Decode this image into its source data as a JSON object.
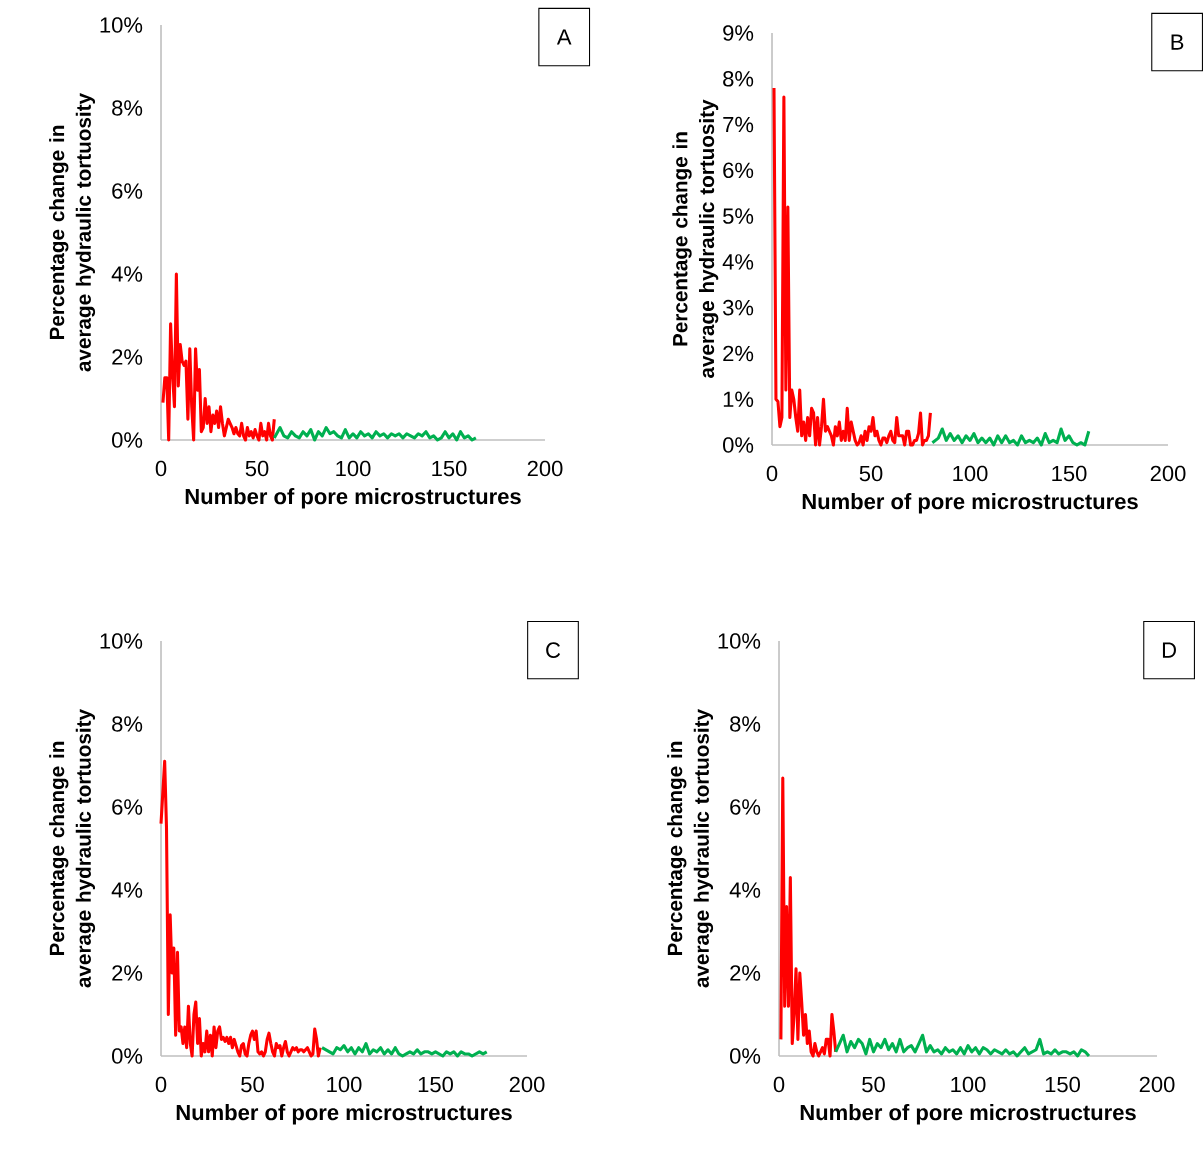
{
  "chart_data": [
    {
      "type": "line",
      "xlabel": "Number of pore microstructures",
      "ylabel": "Percentage change in average hydraulic tortuosity",
      "annotations": [
        "A"
      ],
      "xlim": [
        0,
        200
      ],
      "xticks": [
        0,
        50,
        100,
        150,
        200
      ],
      "ylim": [
        0,
        10
      ],
      "yticks": [
        {
          "value": 0,
          "label": "0%"
        },
        {
          "value": 2,
          "label": "2%"
        },
        {
          "value": 4,
          "label": "4%"
        },
        {
          "value": 6,
          "label": "6%"
        },
        {
          "value": 8,
          "label": "8%"
        },
        {
          "value": 10,
          "label": "10%"
        }
      ],
      "series": [
        {
          "color": "#ff0000",
          "x": [
            1,
            2,
            3,
            4,
            5,
            6,
            7,
            8,
            9,
            10,
            11,
            12,
            13,
            14,
            15,
            16,
            17,
            18,
            19,
            20,
            21,
            22,
            23,
            24,
            25,
            26,
            27,
            28,
            29,
            30,
            31,
            32,
            33,
            34,
            35,
            36,
            37,
            38,
            39,
            40,
            41,
            42,
            43,
            44,
            45,
            46,
            47,
            48,
            49,
            50,
            51,
            52,
            53,
            54,
            55,
            56,
            57,
            58,
            59
          ],
          "values": [
            0.9,
            1.5,
            1.5,
            0,
            2.8,
            1.6,
            0.8,
            4.0,
            1.3,
            2.3,
            1.9,
            1.8,
            1.9,
            0.5,
            2.2,
            0.8,
            0,
            2.2,
            1.2,
            1.7,
            0.2,
            0.3,
            1.0,
            0.4,
            0.8,
            0.2,
            0.6,
            0.4,
            0.7,
            0.3,
            0.8,
            0.4,
            0.1,
            0.3,
            0.5,
            0.4,
            0.3,
            0.15,
            0.3,
            0.15,
            0.1,
            0.4,
            0.1,
            0,
            0.3,
            0.1,
            0.2,
            0.05,
            0.25,
            0.1,
            0,
            0.4,
            0.1,
            0.2,
            0,
            0.4,
            0.1,
            0,
            0.5
          ]
        },
        {
          "color": "#00b050",
          "x": [
            59,
            62,
            64,
            66,
            68,
            70,
            72,
            74,
            76,
            78,
            80,
            82,
            84,
            86,
            88,
            90,
            92,
            94,
            96,
            98,
            100,
            102,
            104,
            106,
            108,
            110,
            112,
            114,
            116,
            118,
            120,
            122,
            124,
            126,
            128,
            130,
            132,
            134,
            136,
            138,
            140,
            142,
            144,
            146,
            148,
            150,
            152,
            154,
            156,
            158,
            160,
            162,
            164
          ],
          "values": [
            0.05,
            0.3,
            0.1,
            0.05,
            0.2,
            0.1,
            0.05,
            0.2,
            0.1,
            0.25,
            0,
            0.2,
            0.1,
            0.3,
            0.15,
            0.2,
            0.1,
            0.05,
            0.25,
            0.05,
            0.15,
            0.05,
            0.2,
            0.1,
            0.15,
            0.05,
            0.2,
            0.1,
            0.15,
            0.05,
            0.15,
            0.1,
            0.15,
            0.05,
            0.15,
            0.1,
            0.05,
            0.15,
            0.1,
            0.2,
            0.05,
            0.1,
            0,
            0.05,
            0.2,
            0.05,
            0.15,
            0,
            0.2,
            0.05,
            0.1,
            0,
            0.05
          ]
        }
      ]
    },
    {
      "type": "line",
      "xlabel": "Number of pore microstructures",
      "ylabel": "Percentage change in average hydraulic tortuosity",
      "annotations": [
        "B"
      ],
      "xlim": [
        0,
        200
      ],
      "xticks": [
        0,
        50,
        100,
        150,
        200
      ],
      "ylim": [
        0,
        9
      ],
      "yticks": [
        {
          "value": 0,
          "label": "0%"
        },
        {
          "value": 1,
          "label": "1%"
        },
        {
          "value": 2,
          "label": "2%"
        },
        {
          "value": 3,
          "label": "3%"
        },
        {
          "value": 4,
          "label": "4%"
        },
        {
          "value": 5,
          "label": "5%"
        },
        {
          "value": 6,
          "label": "6%"
        },
        {
          "value": 7,
          "label": "7%"
        },
        {
          "value": 8,
          "label": "8%"
        },
        {
          "value": 9,
          "label": "9%"
        }
      ],
      "series": [
        {
          "color": "#ff0000",
          "x": [
            1,
            2,
            3,
            4,
            5,
            6,
            7,
            8,
            9,
            10,
            11,
            12,
            13,
            14,
            15,
            16,
            17,
            18,
            19,
            20,
            21,
            22,
            23,
            24,
            25,
            26,
            27,
            28,
            29,
            30,
            31,
            32,
            33,
            34,
            35,
            36,
            37,
            38,
            39,
            40,
            41,
            42,
            43,
            44,
            45,
            46,
            47,
            48,
            49,
            50,
            51,
            52,
            53,
            54,
            55,
            56,
            57,
            58,
            59,
            60,
            61,
            62,
            63,
            64,
            65,
            66,
            67,
            68,
            69,
            70,
            71,
            72,
            73,
            74,
            75,
            76,
            77,
            78,
            79,
            80
          ],
          "values": [
            7.8,
            1.0,
            0.95,
            0.4,
            0.6,
            7.6,
            1.2,
            5.2,
            0.6,
            1.2,
            1.0,
            0.6,
            0.3,
            1.2,
            0.2,
            0.5,
            0.1,
            0.6,
            0.2,
            0.8,
            0.7,
            0,
            0.6,
            0,
            0.4,
            1.0,
            0.3,
            0.4,
            0.3,
            0.2,
            0,
            0.4,
            0.2,
            0.5,
            0.1,
            0.3,
            0.1,
            0.8,
            0.1,
            0.5,
            0.3,
            0.1,
            0,
            0.05,
            0.2,
            0,
            0.3,
            0.1,
            0.4,
            0.3,
            0.6,
            0.2,
            0.3,
            0.1,
            0,
            0.15,
            0.15,
            0.05,
            0.2,
            0.3,
            0.1,
            0.05,
            0.6,
            0.2,
            0.2,
            0.2,
            0,
            0.3,
            0.3,
            0,
            0,
            0.1,
            0.1,
            0.25,
            0.7,
            0,
            0.1,
            0.1,
            0.2,
            0.7
          ]
        },
        {
          "color": "#00b050",
          "x": [
            81,
            84,
            86,
            88,
            90,
            92,
            94,
            96,
            98,
            100,
            102,
            104,
            106,
            108,
            110,
            112,
            114,
            116,
            118,
            120,
            122,
            124,
            126,
            128,
            130,
            132,
            134,
            136,
            138,
            140,
            142,
            144,
            146,
            148,
            150,
            152,
            154,
            156,
            158,
            160
          ],
          "values": [
            0.05,
            0.15,
            0.35,
            0.1,
            0.25,
            0.1,
            0.2,
            0.05,
            0.2,
            0.1,
            0.25,
            0.05,
            0.15,
            0.05,
            0.15,
            0,
            0.2,
            0.05,
            0.2,
            0.05,
            0.1,
            0,
            0.2,
            0.05,
            0.1,
            0.05,
            0.15,
            0,
            0.25,
            0.05,
            0.1,
            0.05,
            0.35,
            0.1,
            0.2,
            0.05,
            0,
            0.05,
            0,
            0.3
          ]
        }
      ]
    },
    {
      "type": "line",
      "xlabel": "Number of pore microstructures",
      "ylabel": "Percentage change in average hydraulic tortuosity",
      "annotations": [
        "C"
      ],
      "xlim": [
        0,
        200
      ],
      "xticks": [
        0,
        50,
        100,
        150,
        200
      ],
      "ylim": [
        0,
        10
      ],
      "yticks": [
        {
          "value": 0,
          "label": "0%"
        },
        {
          "value": 2,
          "label": "2%"
        },
        {
          "value": 4,
          "label": "4%"
        },
        {
          "value": 6,
          "label": "6%"
        },
        {
          "value": 8,
          "label": "8%"
        },
        {
          "value": 10,
          "label": "10%"
        }
      ],
      "series": [
        {
          "color": "#ff0000",
          "x": [
            0,
            2,
            3,
            4,
            5,
            6,
            7,
            8,
            9,
            10,
            11,
            12,
            13,
            14,
            15,
            16,
            17,
            18,
            19,
            20,
            21,
            22,
            23,
            24,
            25,
            26,
            27,
            28,
            29,
            30,
            31,
            32,
            33,
            34,
            35,
            36,
            37,
            38,
            39,
            40,
            41,
            42,
            43,
            44,
            45,
            46,
            47,
            48,
            49,
            50,
            51,
            52,
            53,
            54,
            55,
            56,
            57,
            58,
            59,
            60,
            61,
            62,
            63,
            64,
            65,
            66,
            67,
            68,
            69,
            70,
            71,
            72,
            73,
            74,
            75,
            76,
            77,
            78,
            79,
            80,
            81,
            82,
            83,
            84,
            85,
            86,
            87
          ],
          "values": [
            5.6,
            7.1,
            5.5,
            1.0,
            3.4,
            2.0,
            2.6,
            0.5,
            2.5,
            0.6,
            0.7,
            0.3,
            0.7,
            0.2,
            1.2,
            0.3,
            0,
            1.0,
            1.3,
            0.3,
            0.9,
            0,
            0.3,
            0.1,
            0.6,
            0.1,
            0.5,
            0,
            0.7,
            0.2,
            0.6,
            0.7,
            0.4,
            0.45,
            0.35,
            0.45,
            0.3,
            0.45,
            0.2,
            0.4,
            0.25,
            0.1,
            0,
            0.25,
            0.3,
            0.05,
            0,
            0.3,
            0.5,
            0.6,
            0.4,
            0.6,
            0.1,
            0.05,
            0.1,
            0,
            0.1,
            0.4,
            0.55,
            0.3,
            0.1,
            0,
            0.3,
            0.2,
            0.25,
            0,
            0.2,
            0.35,
            0.1,
            0,
            0.1,
            0.2,
            0.15,
            0.2,
            0.1,
            0.15,
            0.15,
            0.1,
            0.15,
            0.2,
            0.1,
            0,
            0.05,
            0.65,
            0.4,
            0,
            0.2
          ]
        },
        {
          "color": "#00b050",
          "x": [
            88,
            90,
            92,
            94,
            96,
            98,
            100,
            102,
            104,
            106,
            108,
            110,
            112,
            114,
            116,
            118,
            120,
            122,
            124,
            126,
            128,
            130,
            132,
            134,
            136,
            138,
            140,
            142,
            144,
            146,
            148,
            150,
            152,
            154,
            156,
            158,
            160,
            162,
            164,
            166,
            168,
            170,
            172,
            174,
            176,
            178
          ],
          "values": [
            0.2,
            0.15,
            0.1,
            0.05,
            0.2,
            0.15,
            0.25,
            0.1,
            0.2,
            0.05,
            0.2,
            0.1,
            0.3,
            0.05,
            0.15,
            0.1,
            0.2,
            0.05,
            0.15,
            0.05,
            0.2,
            0.05,
            0,
            0.05,
            0.1,
            0.05,
            0.15,
            0.05,
            0.1,
            0.1,
            0.05,
            0.1,
            0.05,
            0,
            0.1,
            0.05,
            0.1,
            0,
            0.1,
            0.05,
            0.05,
            0,
            0.05,
            0.1,
            0.05,
            0.1
          ]
        }
      ]
    },
    {
      "type": "line",
      "xlabel": "Number of pore microstructures",
      "ylabel": "Percentage change in average hydraulic tortuosity",
      "annotations": [
        "D"
      ],
      "xlim": [
        0,
        200
      ],
      "xticks": [
        0,
        50,
        100,
        150,
        200
      ],
      "ylim": [
        0,
        10
      ],
      "yticks": [
        {
          "value": 0,
          "label": "0%"
        },
        {
          "value": 2,
          "label": "2%"
        },
        {
          "value": 4,
          "label": "4%"
        },
        {
          "value": 6,
          "label": "6%"
        },
        {
          "value": 8,
          "label": "8%"
        },
        {
          "value": 10,
          "label": "10%"
        }
      ],
      "series": [
        {
          "color": "#ff0000",
          "x": [
            1,
            2,
            3,
            4,
            5,
            6,
            7,
            8,
            9,
            10,
            11,
            12,
            13,
            14,
            15,
            16,
            17,
            18,
            19,
            20,
            21,
            22,
            23,
            24,
            25,
            26,
            27,
            28,
            29,
            30
          ],
          "values": [
            0.4,
            6.7,
            1.2,
            3.6,
            1.2,
            4.3,
            0.3,
            1.0,
            2.1,
            0.4,
            2.0,
            1.3,
            0.5,
            1.0,
            0.3,
            0.6,
            0.1,
            0,
            0.3,
            0.1,
            0,
            0.1,
            0.2,
            0.05,
            0.4,
            0.4,
            0,
            1.0,
            0.6,
            0.1
          ]
        },
        {
          "color": "#00b050",
          "x": [
            30,
            32,
            34,
            36,
            38,
            40,
            42,
            44,
            46,
            48,
            50,
            52,
            54,
            56,
            58,
            60,
            62,
            64,
            66,
            68,
            70,
            72,
            74,
            76,
            78,
            80,
            82,
            84,
            86,
            88,
            90,
            92,
            94,
            96,
            98,
            100,
            102,
            104,
            106,
            108,
            110,
            112,
            114,
            116,
            118,
            120,
            122,
            124,
            126,
            128,
            130,
            132,
            134,
            136,
            138,
            140,
            142,
            144,
            146,
            148,
            150,
            152,
            154,
            156,
            158,
            160,
            162,
            164
          ],
          "values": [
            0.1,
            0.3,
            0.5,
            0.1,
            0.35,
            0.2,
            0.4,
            0.3,
            0.05,
            0.4,
            0.1,
            0.3,
            0.2,
            0.4,
            0.15,
            0.3,
            0.1,
            0.4,
            0.1,
            0.2,
            0.25,
            0.1,
            0.3,
            0.5,
            0.1,
            0.25,
            0.1,
            0.15,
            0.05,
            0.2,
            0.1,
            0.15,
            0.05,
            0.2,
            0.05,
            0.25,
            0.1,
            0.2,
            0.05,
            0.2,
            0.15,
            0.05,
            0.15,
            0.1,
            0.05,
            0.15,
            0.05,
            0.1,
            0,
            0.1,
            0.2,
            0.05,
            0.1,
            0.15,
            0.4,
            0.05,
            0.1,
            0.05,
            0.15,
            0.05,
            0.1,
            0.1,
            0.05,
            0.1,
            0,
            0.15,
            0.1,
            0
          ]
        }
      ]
    }
  ]
}
